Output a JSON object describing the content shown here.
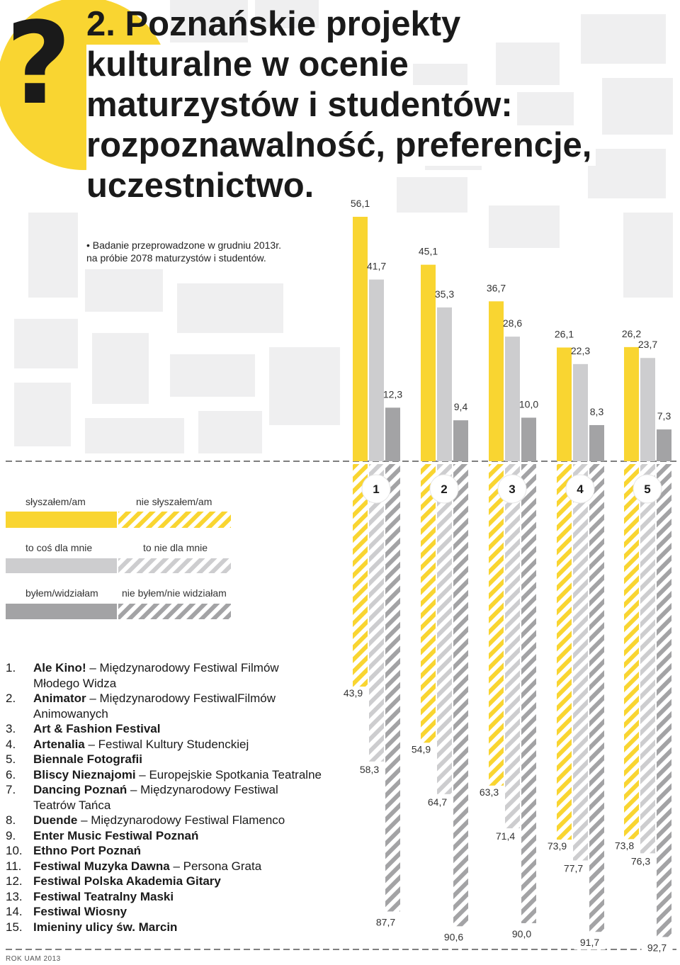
{
  "header": {
    "qmark": "?",
    "title_lines": [
      "2. Poznańskie projekty",
      "kulturalne w ocenie",
      "maturzystów i studentów:",
      "rozpoznawalność, preferencje,",
      "uczestnictwo."
    ],
    "note_lines": [
      "• Badanie przeprowadzone w grudniu 2013r.",
      "na próbie 2078 maturzystów i studentów."
    ]
  },
  "legend": {
    "heard": "słyszałem/am",
    "not_heard": "nie słyszałem/am",
    "for_me": "to coś dla mnie",
    "not_for_me": "to nie dla mnie",
    "attended": "byłem/widziałam",
    "not_attended": "nie byłem/nie widziałam"
  },
  "colors": {
    "yellow": "#f9d531",
    "light_gray": "#cdcdcf",
    "dark_gray": "#a3a3a5",
    "background_circle": "#f9d531",
    "map_blocks": "#efeff0"
  },
  "chart_data": {
    "type": "bar",
    "categories": [
      "1",
      "2",
      "3",
      "4",
      "5"
    ],
    "series": [
      {
        "name": "słyszałem/am",
        "values": [
          56.1,
          45.1,
          36.7,
          26.1,
          26.2
        ]
      },
      {
        "name": "to coś dla mnie",
        "values": [
          41.7,
          35.3,
          28.6,
          22.3,
          23.7
        ]
      },
      {
        "name": "byłem/widziałam",
        "values": [
          12.3,
          9.4,
          10.0,
          8.3,
          7.3
        ]
      },
      {
        "name": "nie słyszałem/am",
        "values": [
          43.9,
          54.9,
          63.3,
          73.9,
          73.8
        ]
      },
      {
        "name": "to nie dla mnie",
        "values": [
          58.3,
          64.7,
          71.4,
          77.7,
          76.3
        ]
      },
      {
        "name": "nie byłem/nie widziałam",
        "values": [
          87.7,
          90.6,
          90.0,
          91.7,
          92.7
        ]
      }
    ],
    "value_labels": [
      [
        "56,1",
        "45,1",
        "36,7",
        "26,1",
        "26,2"
      ],
      [
        "41,7",
        "35,3",
        "28,6",
        "22,3",
        "23,7"
      ],
      [
        "12,3",
        "9,4",
        "10,0",
        "8,3",
        "7,3"
      ],
      [
        "43,9",
        "54,9",
        "63,3",
        "73,9",
        "73,8"
      ],
      [
        "58,3",
        "64,7",
        "71,4",
        "77,7",
        "76,3"
      ],
      [
        "87,7",
        "90,6",
        "90,0",
        "91,7",
        "92,7"
      ]
    ],
    "ylim": [
      0,
      100
    ]
  },
  "projects": [
    {
      "num": "1.",
      "name": "Ale Kino!",
      "desc": " – Międzynarodowy Festiwal Filmów",
      "cont": "Młodego Widza"
    },
    {
      "num": "2.",
      "name": "Animator",
      "desc": " – Międzynarodowy FestiwalFilmów",
      "cont": "Animowanych"
    },
    {
      "num": "3.",
      "name": "Art & Fashion Festival",
      "desc": "",
      "cont": ""
    },
    {
      "num": "4.",
      "name": "Artenalia",
      "desc": " – Festiwal Kultury Studenckiej",
      "cont": ""
    },
    {
      "num": "5.",
      "name": "Biennale Fotografii",
      "desc": "",
      "cont": ""
    },
    {
      "num": "6.",
      "name": "Bliscy Nieznajomi",
      "desc": " – Europejskie Spotkania Teatralne",
      "cont": ""
    },
    {
      "num": "7.",
      "name": "Dancing Poznań",
      "desc": " – Międzynarodowy Festiwal",
      "cont": "Teatrów Tańca"
    },
    {
      "num": "8.",
      "name": "Duende",
      "desc": " – Międzynarodowy Festiwal Flamenco",
      "cont": ""
    },
    {
      "num": "9.",
      "name": "Enter Music Festiwal Poznań",
      "desc": "",
      "cont": ""
    },
    {
      "num": "10.",
      "name": "Ethno Port Poznań",
      "desc": "",
      "cont": ""
    },
    {
      "num": "11.",
      "name": "Festiwal Muzyka Dawna",
      "desc": " – Persona Grata",
      "cont": ""
    },
    {
      "num": "12.",
      "name": "Festiwal Polska Akademia Gitary",
      "desc": "",
      "cont": ""
    },
    {
      "num": "13.",
      "name": "Festiwal Teatralny Maski",
      "desc": "",
      "cont": ""
    },
    {
      "num": "14.",
      "name": "Festiwal Wiosny",
      "desc": "",
      "cont": ""
    },
    {
      "num": "15.",
      "name": "Imieniny ulicy św. Marcin",
      "desc": "",
      "cont": ""
    }
  ],
  "footer": "ROK UAM 2013"
}
